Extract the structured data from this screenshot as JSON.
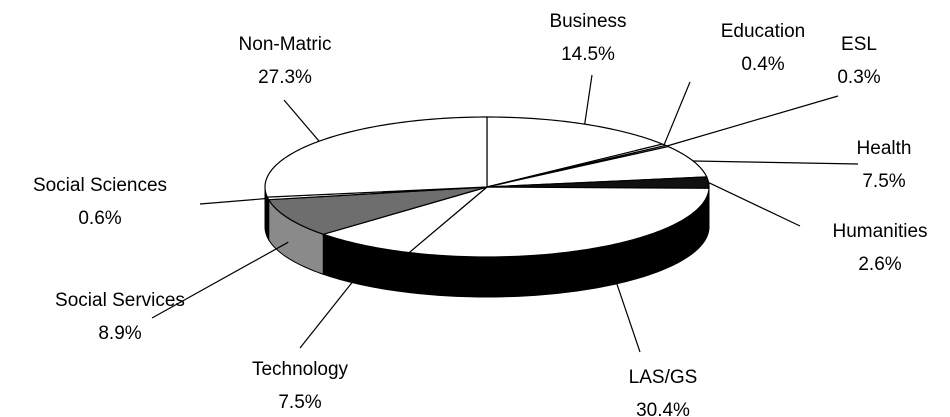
{
  "chart_data": {
    "type": "pie3d",
    "categories": [
      "Business",
      "Education",
      "ESL",
      "Health",
      "Humanities",
      "LAS/GS",
      "Technology",
      "Social Services",
      "Social Sciences",
      "Non-Matric"
    ],
    "values": [
      14.5,
      0.4,
      0.3,
      7.5,
      2.6,
      30.4,
      7.5,
      8.9,
      0.6,
      27.3
    ],
    "value_labels": [
      "14.5%",
      "0.4%",
      "0.3%",
      "7.5%",
      "2.6%",
      "30.4%",
      "7.5%",
      "8.9%",
      "0.6%",
      "27.3%"
    ],
    "colors": [
      "#ffffff",
      "#ffffff",
      "#ffffff",
      "#ffffff",
      "#111111",
      "#ffffff",
      "#ffffff",
      "#6e6e6e",
      "#ffffff",
      "#ffffff"
    ],
    "side_colors": [
      "#000000",
      "#000000",
      "#000000",
      "#000000",
      "#000000",
      "#000000",
      "#000000",
      "#8a8a8a",
      "#000000",
      "#000000"
    ]
  }
}
